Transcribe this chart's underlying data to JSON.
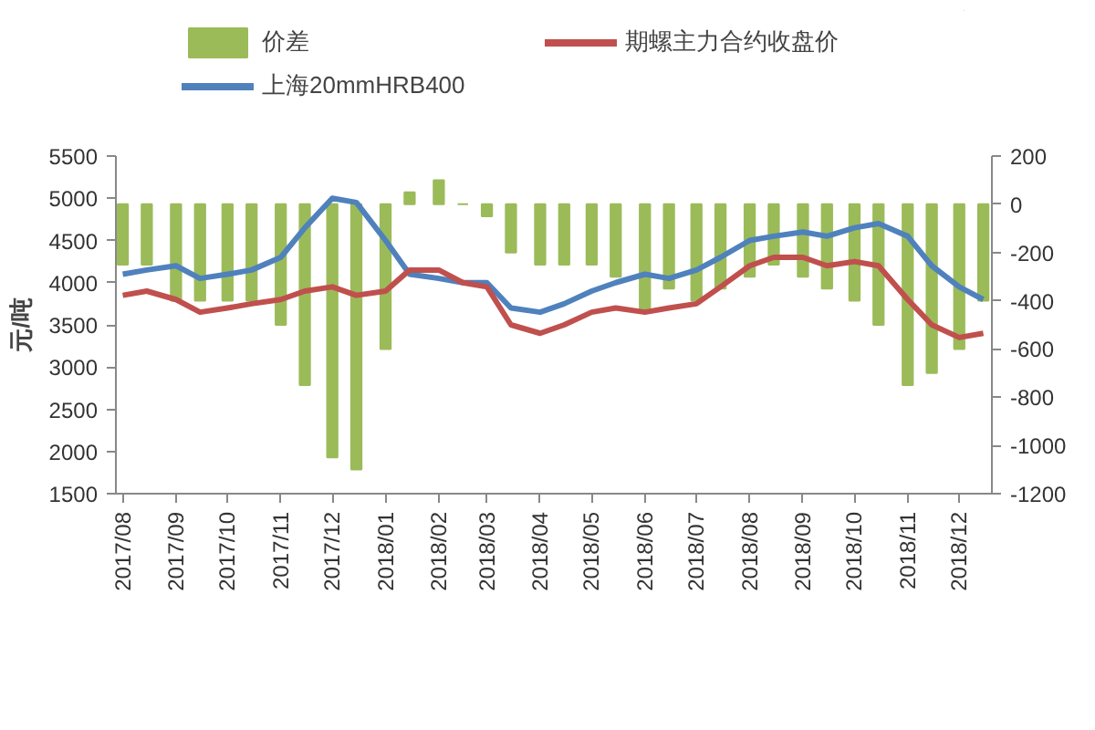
{
  "chart_data": {
    "type": "line",
    "ylabel": "元/吨",
    "legend": "top",
    "grid": false,
    "x": [
      "2017-08-01",
      "2017-08-15",
      "2017-09-01",
      "2017-09-15",
      "2017-10-01",
      "2017-10-15",
      "2017-11-01",
      "2017-11-15",
      "2017-12-01",
      "2017-12-15",
      "2018-01-01",
      "2018-01-15",
      "2018-02-01",
      "2018-02-15",
      "2018-03-01",
      "2018-03-15",
      "2018-04-01",
      "2018-04-15",
      "2018-05-01",
      "2018-05-15",
      "2018-06-01",
      "2018-06-15",
      "2018-07-01",
      "2018-07-15",
      "2018-08-01",
      "2018-08-15",
      "2018-09-01",
      "2018-09-15",
      "2018-10-01",
      "2018-10-15",
      "2018-11-01",
      "2018-11-15",
      "2018-12-01",
      "2018-12-15"
    ],
    "series": [
      {
        "name": "价差",
        "type": "bar",
        "axis": "y2",
        "color": "#9bbb59",
        "values": [
          -250,
          -250,
          -400,
          -400,
          -400,
          -400,
          -500,
          -750,
          -1050,
          -1100,
          -600,
          50,
          100,
          0,
          -50,
          -200,
          -250,
          -250,
          -250,
          -300,
          -450,
          -350,
          -400,
          -350,
          -300,
          -250,
          -300,
          -350,
          -400,
          -500,
          -750,
          -700,
          -600,
          -400
        ]
      },
      {
        "name": "上海20mmHRB400",
        "color": "#4f81bd",
        "values": [
          4100,
          4150,
          4200,
          4050,
          4100,
          4150,
          4300,
          4650,
          5000,
          4950,
          4500,
          4100,
          4050,
          4000,
          4000,
          3700,
          3650,
          3750,
          3900,
          4000,
          4100,
          4050,
          4150,
          4300,
          4500,
          4550,
          4600,
          4550,
          4650,
          4700,
          4550,
          4200,
          3950,
          3800
        ]
      },
      {
        "name": "期螺主力合约收盘价",
        "color": "#c0504d",
        "values": [
          3850,
          3900,
          3800,
          3650,
          3700,
          3750,
          3800,
          3900,
          3950,
          3850,
          3900,
          4150,
          4150,
          4000,
          3950,
          3500,
          3400,
          3500,
          3650,
          3700,
          3650,
          3700,
          3750,
          3950,
          4200,
          4300,
          4300,
          4200,
          4250,
          4200,
          3800,
          3500,
          3350,
          3400
        ]
      }
    ],
    "xlim": [
      "2017-07-28",
      "2018-12-20"
    ],
    "xticks": [
      {
        "value": "2017-08-01",
        "label": "2017/08"
      },
      {
        "value": "2017-09-01",
        "label": "2017/09"
      },
      {
        "value": "2017-10-01",
        "label": "2017/10"
      },
      {
        "value": "2017-11-01",
        "label": "2017/11"
      },
      {
        "value": "2017-12-01",
        "label": "2017/12"
      },
      {
        "value": "2018-01-01",
        "label": "2018/01"
      },
      {
        "value": "2018-02-01",
        "label": "2018/02"
      },
      {
        "value": "2018-03-01",
        "label": "2018/03"
      },
      {
        "value": "2018-04-01",
        "label": "2018/04"
      },
      {
        "value": "2018-05-01",
        "label": "2018/05"
      },
      {
        "value": "2018-06-01",
        "label": "2018/06"
      },
      {
        "value": "2018-07-01",
        "label": "2018/07"
      },
      {
        "value": "2018-08-01",
        "label": "2018/08"
      },
      {
        "value": "2018-09-01",
        "label": "2018/09"
      },
      {
        "value": "2018-10-01",
        "label": "2018/10"
      },
      {
        "value": "2018-11-01",
        "label": "2018/11"
      },
      {
        "value": "2018-12-01",
        "label": "2018/12"
      }
    ],
    "ylim": [
      1500,
      5500
    ],
    "yticks": [
      1500,
      2000,
      2500,
      3000,
      3500,
      4000,
      4500,
      5000,
      5500
    ],
    "y2lim": [
      -1200,
      200
    ],
    "y2ticks": [
      -1200,
      -1000,
      -800,
      -600,
      -400,
      -200,
      0,
      200
    ]
  }
}
